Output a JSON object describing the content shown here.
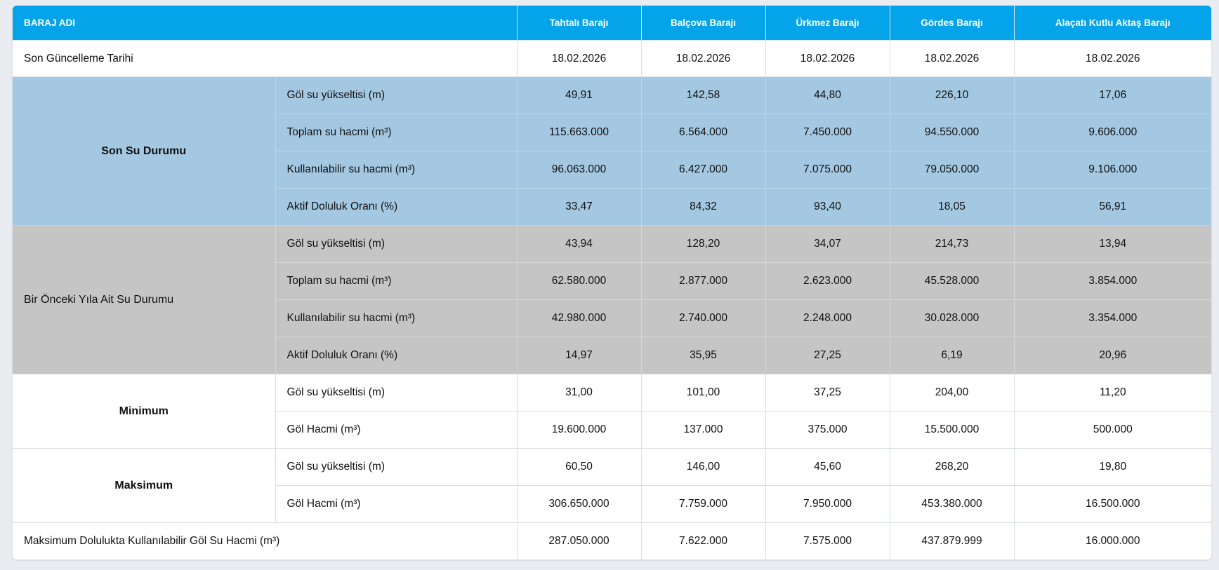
{
  "table": {
    "header_label": "BARAJ ADI",
    "dams": [
      "Tahtalı Barajı",
      "Balçova Barajı",
      "Ürkmez Barajı",
      "Gördes Barajı",
      "Alaçatı Kutlu Aktaş Barajı"
    ],
    "update_row": {
      "label": "Son Güncelleme Tarihi",
      "values": [
        "18.02.2026",
        "18.02.2026",
        "18.02.2026",
        "18.02.2026",
        "18.02.2026"
      ]
    },
    "current": {
      "group": "Son Su Durumu",
      "rows": [
        {
          "label": "Göl su yükseltisi (m)",
          "values": [
            "49,91",
            "142,58",
            "44,80",
            "226,10",
            "17,06"
          ]
        },
        {
          "label": "Toplam su hacmi (m³)",
          "values": [
            "115.663.000",
            "6.564.000",
            "7.450.000",
            "94.550.000",
            "9.606.000"
          ]
        },
        {
          "label": "Kullanılabilir su hacmi (m³)",
          "values": [
            "96.063.000",
            "6.427.000",
            "7.075.000",
            "79.050.000",
            "9.106.000"
          ]
        },
        {
          "label": "Aktif Doluluk Oranı (%)",
          "values": [
            "33,47",
            "84,32",
            "93,40",
            "18,05",
            "56,91"
          ]
        }
      ]
    },
    "previous": {
      "group": "Bir Önceki Yıla Ait Su Durumu",
      "rows": [
        {
          "label": "Göl su yükseltisi (m)",
          "values": [
            "43,94",
            "128,20",
            "34,07",
            "214,73",
            "13,94"
          ]
        },
        {
          "label": "Toplam su hacmi (m³)",
          "values": [
            "62.580.000",
            "2.877.000",
            "2.623.000",
            "45.528.000",
            "3.854.000"
          ]
        },
        {
          "label": "Kullanılabilir su hacmi (m³)",
          "values": [
            "42.980.000",
            "2.740.000",
            "2.248.000",
            "30.028.000",
            "3.354.000"
          ]
        },
        {
          "label": "Aktif Doluluk Oranı (%)",
          "values": [
            "14,97",
            "35,95",
            "27,25",
            "6,19",
            "20,96"
          ]
        }
      ]
    },
    "minimum": {
      "group": "Minimum",
      "rows": [
        {
          "label": "Göl su yükseltisi (m)",
          "values": [
            "31,00",
            "101,00",
            "37,25",
            "204,00",
            "11,20"
          ]
        },
        {
          "label": "Göl Hacmi (m³)",
          "values": [
            "19.600.000",
            "137.000",
            "375.000",
            "15.500.000",
            "500.000"
          ]
        }
      ]
    },
    "maximum": {
      "group": "Maksimum",
      "rows": [
        {
          "label": "Göl su yükseltisi (m)",
          "values": [
            "60,50",
            "146,00",
            "45,60",
            "268,20",
            "19,80"
          ]
        },
        {
          "label": "Göl Hacmi (m³)",
          "values": [
            "306.650.000",
            "7.759.000",
            "7.950.000",
            "453.380.000",
            "16.500.000"
          ]
        }
      ]
    },
    "max_usable_row": {
      "label": "Maksimum Dolulukta Kullanılabilir Göl Su Hacmi (m³)",
      "values": [
        "287.050.000",
        "7.622.000",
        "7.575.000",
        "437.879.999",
        "16.000.000"
      ]
    }
  },
  "colors": {
    "header": "#05a3ea",
    "current_bg": "#a4c8e2",
    "previous_bg": "#c4c5c4"
  }
}
